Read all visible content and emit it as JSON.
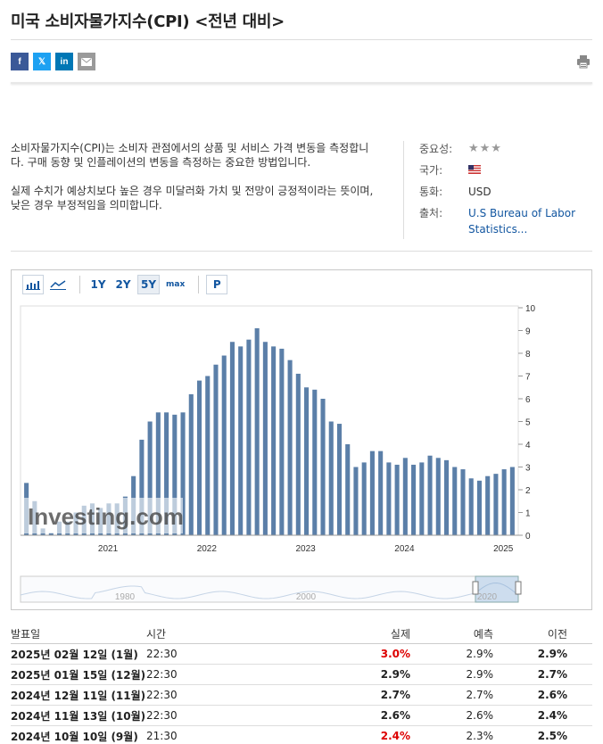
{
  "page": {
    "title": "미국 소비자물가지수(CPI) <전년 대비>"
  },
  "share": {
    "facebook": "f",
    "twitter": "𝕏",
    "linkedin": "in",
    "icons": [
      "facebook-icon",
      "twitter-icon",
      "linkedin-icon",
      "mail-icon"
    ]
  },
  "description": {
    "p1": "소비자물가지수(CPI)는 소비자 관점에서의 상품 및 서비스 가격 변동을 측정합니다. 구매 동향 및 인플레이션의 변동을 측정하는 중요한 방법입니다.",
    "p2": "실제 수치가 예상치보다 높은 경우 미달러화 가치 및 전망이 긍정적이라는 뜻이며, 낮은 경우 부정적임을 의미합니다."
  },
  "info": {
    "importance_label": "중요성:",
    "importance_stars": "★★★",
    "country_label": "국가:",
    "currency_label": "통화:",
    "currency_value": "USD",
    "source_label": "출처:",
    "source_line1": "U.S Bureau of Labor",
    "source_line2": "Statistics..."
  },
  "toolbar": {
    "ranges": [
      "1Y",
      "2Y",
      "5Y",
      "max"
    ],
    "selected_range": "5Y",
    "p_label": "P"
  },
  "chart_data": {
    "type": "bar",
    "y_ticks": [
      "10",
      "9",
      "8",
      "7",
      "6",
      "5",
      "4",
      "3",
      "2",
      "1",
      "0"
    ],
    "ylim": [
      0,
      10
    ],
    "x_ticks": [
      "2021",
      "2022",
      "2023",
      "2024",
      "2025"
    ],
    "watermark": "Investing.com",
    "values": [
      2.3,
      1.5,
      0.3,
      0.1,
      0.6,
      0.6,
      1.0,
      1.3,
      1.4,
      1.2,
      1.4,
      1.4,
      1.7,
      2.6,
      4.2,
      5.0,
      5.4,
      5.4,
      5.3,
      5.4,
      6.2,
      6.8,
      7.0,
      7.5,
      7.9,
      8.5,
      8.3,
      8.6,
      9.1,
      8.5,
      8.3,
      8.2,
      7.7,
      7.1,
      6.5,
      6.4,
      6.0,
      5.0,
      4.9,
      4.0,
      3.0,
      3.2,
      3.7,
      3.7,
      3.2,
      3.1,
      3.4,
      3.1,
      3.2,
      3.5,
      3.4,
      3.3,
      3.0,
      2.9,
      2.5,
      2.4,
      2.6,
      2.7,
      2.9,
      3.0
    ],
    "navigator_ticks": [
      "1980",
      "2000",
      "2020"
    ],
    "bar_color": "#5b7fa8"
  },
  "table": {
    "headers": {
      "date": "발표일",
      "time": "시간",
      "actual": "실제",
      "forecast": "예측",
      "previous": "이전"
    },
    "rows": [
      {
        "date": "2025년 02월 12일 (1월)",
        "time": "22:30",
        "actual": "3.0%",
        "actual_red": true,
        "forecast": "2.9%",
        "previous": "2.9%"
      },
      {
        "date": "2025년 01월 15일 (12월)",
        "time": "22:30",
        "actual": "2.9%",
        "actual_red": false,
        "forecast": "2.9%",
        "previous": "2.7%"
      },
      {
        "date": "2024년 12월 11일 (11월)",
        "time": "22:30",
        "actual": "2.7%",
        "actual_red": false,
        "forecast": "2.7%",
        "previous": "2.6%"
      },
      {
        "date": "2024년 11월 13일 (10월)",
        "time": "22:30",
        "actual": "2.6%",
        "actual_red": false,
        "forecast": "2.6%",
        "previous": "2.4%"
      },
      {
        "date": "2024년 10월 10일 (9월)",
        "time": "21:30",
        "actual": "2.4%",
        "actual_red": true,
        "forecast": "2.3%",
        "previous": "2.5%"
      }
    ]
  }
}
